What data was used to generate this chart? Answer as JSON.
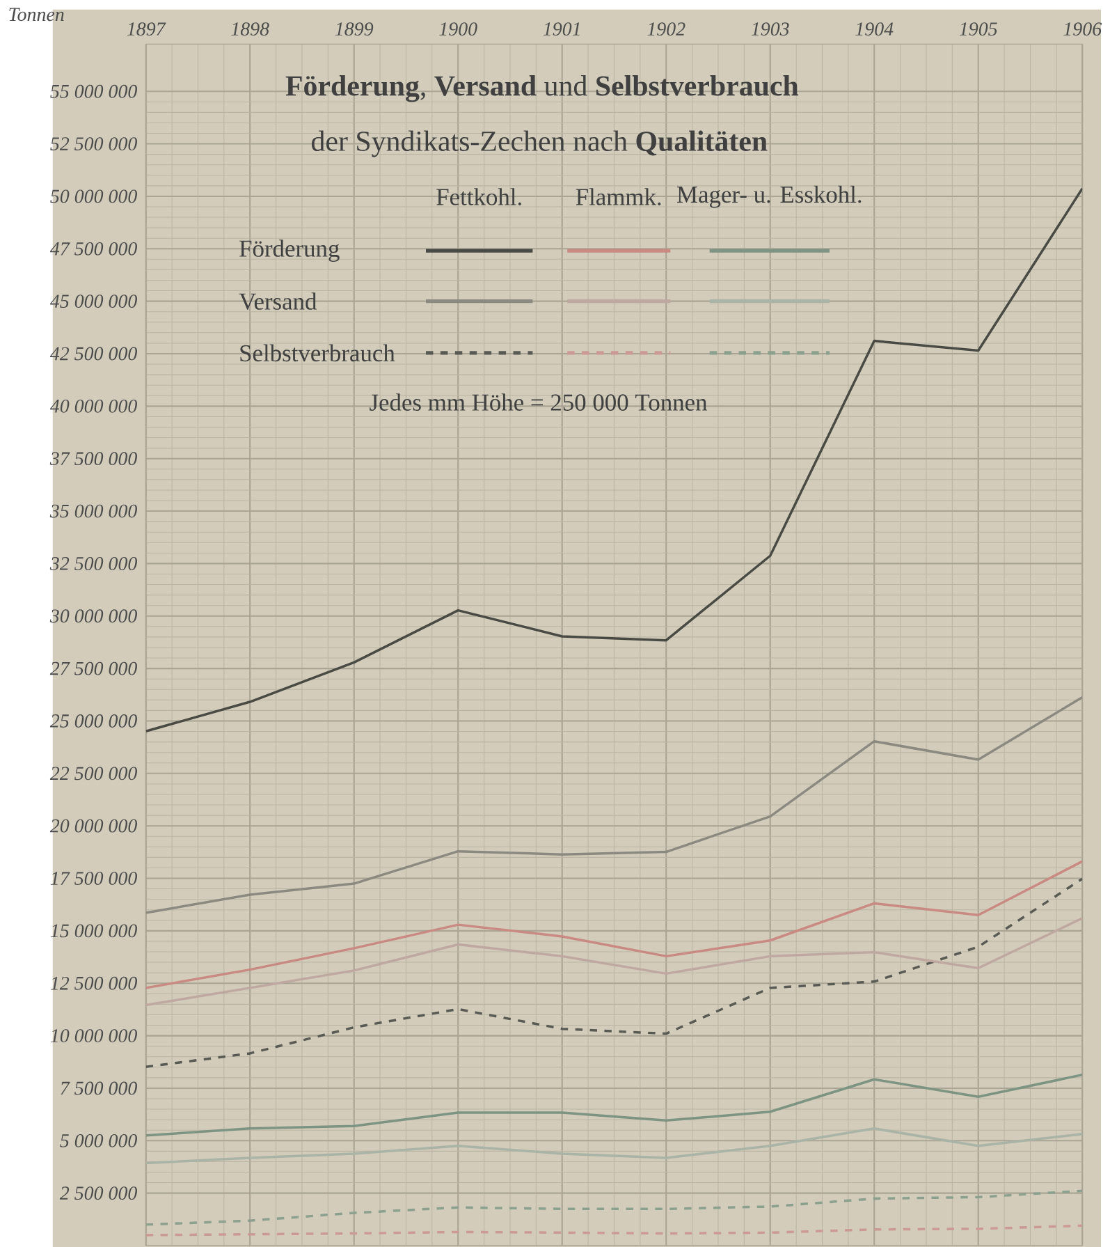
{
  "chart_data": {
    "type": "line",
    "title": "**Förderung**, **Versand** und **Selbstverbrauch**",
    "subtitle": "der Syndikats-Zechen nach **Qualitäten**",
    "ylabel": "Tonnen",
    "annotations": [
      "Fettkohl.",
      "Flammk.",
      "Mager- u. Esskohl.",
      "Förderung",
      "Versand",
      "Selbstverbrauch",
      "Jedes mm Höhe = 250 000 Tonnen"
    ],
    "x": [
      1897,
      1898,
      1899,
      1900,
      1901,
      1902,
      1903,
      1904,
      1905,
      1906
    ],
    "xlim": [
      1897,
      1906
    ],
    "xticks": [
      1897,
      1898,
      1899,
      1900,
      1901,
      1902,
      1903,
      1904,
      1905,
      1906
    ],
    "ylim": [
      0,
      57250000
    ],
    "yticks": [
      {
        "value": 2500000,
        "label": "2 500 000"
      },
      {
        "value": 5000000,
        "label": "5 000 000"
      },
      {
        "value": 7500000,
        "label": "7 500 000"
      },
      {
        "value": 10000000,
        "label": "10 000 000"
      },
      {
        "value": 12500000,
        "label": "12 500 000"
      },
      {
        "value": 15000000,
        "label": "15 000 000"
      },
      {
        "value": 17500000,
        "label": "17 500 000"
      },
      {
        "value": 20000000,
        "label": "20 000 000"
      },
      {
        "value": 22500000,
        "label": "22 500 000"
      },
      {
        "value": 25000000,
        "label": "25 000 000"
      },
      {
        "value": 27500000,
        "label": "27 500 000"
      },
      {
        "value": 30000000,
        "label": "30 000 000"
      },
      {
        "value": 32500000,
        "label": "32 500 000"
      },
      {
        "value": 35000000,
        "label": "35 000 000"
      },
      {
        "value": 37500000,
        "label": "37 500 000"
      },
      {
        "value": 40000000,
        "label": "40 000 000"
      },
      {
        "value": 42500000,
        "label": "42 500 000"
      },
      {
        "value": 45000000,
        "label": "45 000 000"
      },
      {
        "value": 47500000,
        "label": "47 500 000"
      },
      {
        "value": 50000000,
        "label": "50 000 000"
      },
      {
        "value": 52500000,
        "label": "52 500 000"
      },
      {
        "value": 55000000,
        "label": "55 000 000"
      }
    ],
    "grid": true,
    "series": [
      {
        "color": "#4a4a44",
        "line_style": "solid",
        "values": [
          24510000,
          25910000,
          27790000,
          30270000,
          29030000,
          28840000,
          32870000,
          43110000,
          42650000,
          50370000
        ]
      },
      {
        "color": "#8c8a80",
        "line_style": "solid",
        "values": [
          15860000,
          16720000,
          17250000,
          18790000,
          18640000,
          18760000,
          20450000,
          24030000,
          23160000,
          26130000
        ]
      },
      {
        "color": "#5a5a54",
        "line_style": "dashed",
        "values": [
          8520000,
          9160000,
          10400000,
          11270000,
          10330000,
          10100000,
          12280000,
          12580000,
          14240000,
          17480000
        ]
      },
      {
        "color": "#c98a84",
        "line_style": "solid",
        "values": [
          12280000,
          13150000,
          14170000,
          15290000,
          14730000,
          13790000,
          14540000,
          16310000,
          15750000,
          18310000
        ]
      },
      {
        "color": "#bfa8a0",
        "line_style": "solid",
        "values": [
          11460000,
          12280000,
          13110000,
          14350000,
          13790000,
          12960000,
          13790000,
          13980000,
          13220000,
          15600000
        ]
      },
      {
        "color": "#cc9a94",
        "line_style": "dashed",
        "values": [
          500000,
          540000,
          580000,
          650000,
          620000,
          580000,
          620000,
          770000,
          800000,
          950000
        ]
      },
      {
        "color": "#7e9482",
        "line_style": "solid",
        "values": [
          5250000,
          5580000,
          5700000,
          6340000,
          6340000,
          5960000,
          6380000,
          7920000,
          7090000,
          8140000
        ]
      },
      {
        "color": "#aab4a6",
        "line_style": "solid",
        "values": [
          3930000,
          4180000,
          4380000,
          4750000,
          4380000,
          4180000,
          4750000,
          5580000,
          4750000,
          5320000
        ]
      },
      {
        "color": "#8ca08e",
        "line_style": "dashed",
        "values": [
          1000000,
          1190000,
          1560000,
          1820000,
          1750000,
          1750000,
          1860000,
          2240000,
          2310000,
          2610000
        ]
      }
    ]
  }
}
